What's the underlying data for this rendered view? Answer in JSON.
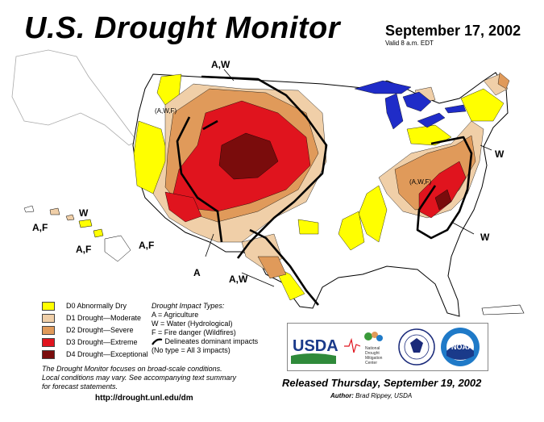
{
  "title": "U.S. Drought Monitor",
  "date": "September 17, 2002",
  "valid": "Valid 8 a.m. EDT",
  "legend": [
    {
      "label": "D0 Abnormally Dry",
      "color": "#ffff00"
    },
    {
      "label": "D1 Drought—Moderate",
      "color": "#f0cfa8"
    },
    {
      "label": "D2 Drought—Severe",
      "color": "#e09a5a"
    },
    {
      "label": "D3 Drought—Extreme",
      "color": "#e0141e"
    },
    {
      "label": "D4 Drought—Exceptional",
      "color": "#7a0c0c"
    }
  ],
  "impacts": {
    "heading": "Drought  Impact  Types:",
    "a": "A = Agriculture",
    "w": "W = Water (Hydrological)",
    "f": "F = Fire danger (Wildfires)",
    "delineates": "Delineates dominant impacts",
    "none": "(No type = All 3 impacts)"
  },
  "note_line1": "The Drought Monitor focuses on broad-scale conditions.",
  "note_line2": "Local conditions may vary. See accompanying text summary",
  "note_line3": "for forecast statements.",
  "url": "http://drought.unl.edu/dm",
  "released": "Released Thursday, September 19, 2002",
  "author_label": "Author:",
  "author": "Brad Rippey, USDA",
  "map_labels": {
    "aw_top": "A,W",
    "awf_west": "(A,W,F)",
    "awf_east": "(A,W,F)",
    "w_east": "W",
    "w_se": "W",
    "af_sw": "A,F",
    "a_sw": "A",
    "aw_tx": "A,W",
    "hi_w": "W",
    "hi_af1": "A,F",
    "hi_af2": "A,F"
  },
  "logos": {
    "usda": "USDA",
    "ndmc_1": "National",
    "ndmc_2": "Drought",
    "ndmc_3": "Mitigation",
    "ndmc_4": "Center",
    "noaa": "NOAA"
  }
}
